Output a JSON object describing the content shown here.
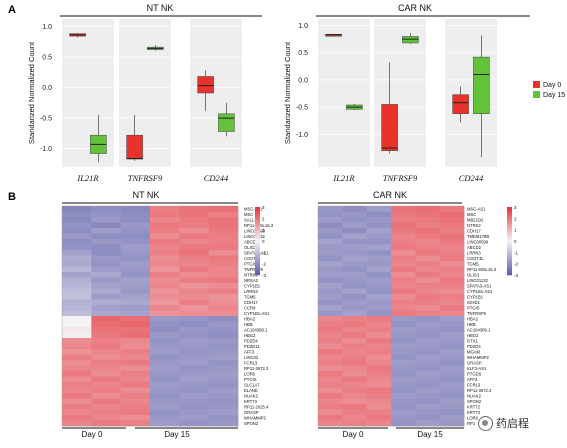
{
  "panel_a": {
    "letter": "A",
    "y_axis_label": "Standarized Normalized Count",
    "y_ticks": [
      "1.0",
      "0.5",
      "0.0",
      "-0.5",
      "-1.0"
    ],
    "legend": [
      {
        "label": "Day 0",
        "color": "#e8322c"
      },
      {
        "label": "Day 15",
        "color": "#62c23a"
      }
    ]
  },
  "panel_b": {
    "letter": "B",
    "colorbar_ticks": [
      "3",
      "2",
      "1",
      "0",
      "-1",
      "-2",
      "-3"
    ],
    "x_labels": [
      "Day 0",
      "Day 15"
    ]
  },
  "colors": {
    "day0_box": "#e8322c",
    "day15_box": "#62c23a",
    "panel_bg": "#eeeeee",
    "heat_high": "#e4333b",
    "heat_mid": "#f4f4f6",
    "heat_low": "#5d5ba8"
  },
  "chart_data": [
    {
      "type": "box",
      "title": "NT NK",
      "ylabel": "Standarized Normalized Count",
      "ylim": [
        -1.3,
        1.12
      ],
      "subplots": [
        {
          "gene": "IL21R",
          "boxes": [
            {
              "group": "Day 0",
              "min": 0.82,
              "q1": 0.84,
              "median": 0.86,
              "q3": 0.88,
              "max": 0.89
            },
            {
              "group": "Day 15",
              "min": -1.22,
              "q1": -1.08,
              "median": -0.93,
              "q3": -0.78,
              "max": -0.45
            }
          ]
        },
        {
          "gene": "TNFRSF9",
          "boxes": [
            {
              "group": "Day 0",
              "min": -1.2,
              "q1": -1.17,
              "median": -1.16,
              "q3": -0.78,
              "max": -0.45
            },
            {
              "group": "Day 15",
              "min": 0.6,
              "q1": 0.62,
              "median": 0.64,
              "q3": 0.66,
              "max": 0.69
            }
          ]
        },
        {
          "gene": "CD244",
          "boxes": [
            {
              "group": "Day 0",
              "min": -0.38,
              "q1": -0.09,
              "median": 0.03,
              "q3": 0.18,
              "max": 0.28
            },
            {
              "group": "Day 15",
              "min": -0.8,
              "q1": -0.72,
              "median": -0.5,
              "q3": -0.43,
              "max": -0.25
            }
          ]
        }
      ]
    },
    {
      "type": "box",
      "title": "CAR NK",
      "ylabel": "Standarized Normalized Count",
      "ylim": [
        -1.6,
        1.12
      ],
      "subplots": [
        {
          "gene": "IL21R",
          "boxes": [
            {
              "group": "Day 0",
              "min": 0.81,
              "q1": 0.82,
              "median": 0.83,
              "q3": 0.84,
              "max": 0.85
            },
            {
              "group": "Day 15",
              "min": -0.55,
              "q1": -0.54,
              "median": -0.5,
              "q3": -0.46,
              "max": -0.44
            }
          ]
        },
        {
          "gene": "TNFRSF9",
          "boxes": [
            {
              "group": "Day 0",
              "min": -1.35,
              "q1": -1.3,
              "median": -1.25,
              "q3": -0.45,
              "max": 0.32
            },
            {
              "group": "Day 15",
              "min": 0.66,
              "q1": 0.68,
              "median": 0.75,
              "q3": 0.8,
              "max": 0.86
            }
          ]
        },
        {
          "gene": "CD244",
          "boxes": [
            {
              "group": "Day 0",
              "min": -0.78,
              "q1": -0.62,
              "median": -0.42,
              "q3": -0.27,
              "max": -0.12
            },
            {
              "group": "Day 15",
              "min": -1.42,
              "q1": -0.62,
              "median": 0.1,
              "q3": 0.42,
              "max": 0.82
            }
          ]
        }
      ]
    },
    {
      "type": "heatmap",
      "title": "NT NK",
      "columns": [
        "Day 0",
        "Day 0",
        "Day 0",
        "Day 15",
        "Day 15",
        "Day 15"
      ],
      "groups": [
        "Day 0",
        "Day 15"
      ],
      "value_range": [
        -3,
        3
      ],
      "rows": [
        "MSC-AS1",
        "MSC",
        "SALL1",
        "RP11-825L16.3",
        "LINC00599",
        "LINC01132",
        "ABCD2",
        "OLIG3",
        "SPATA3-AS1",
        "CGGT4L",
        "PTGIS",
        "TNFRSF9",
        "NTRK2",
        "NRSA2",
        "CYP1B1",
        "LRRN3",
        "TGM5",
        "CDH17",
        "CCR8",
        "CYP1B1-AS1",
        "HBA2",
        "HBB",
        "AC104389.1",
        "HBG2",
        "PDZD4",
        "PDZD11",
        "AFF3",
        "LINC02",
        "FCRL3",
        "RP11-3672.3",
        "LOR6",
        "PTGIS",
        "SLC1A7",
        "ELANE",
        "NUAK2",
        "KRT73",
        "RP11-2025.4",
        "GRASP",
        "WHAMMP2",
        "SPON2"
      ],
      "values": [
        [
          -2.2,
          -2.0,
          -2.1,
          1.8,
          2.0,
          2.1
        ],
        [
          -2.0,
          -1.9,
          -2.0,
          1.9,
          2.0,
          1.8
        ],
        [
          -2.1,
          -1.8,
          -2.0,
          1.7,
          1.9,
          2.0
        ],
        [
          -1.9,
          -2.1,
          -1.8,
          1.9,
          1.8,
          2.0
        ],
        [
          -2.0,
          -1.7,
          -1.9,
          1.8,
          1.6,
          1.9
        ],
        [
          -1.8,
          -2.0,
          -2.0,
          1.6,
          1.9,
          1.8
        ],
        [
          -2.0,
          -1.8,
          -1.9,
          1.9,
          1.7,
          1.8
        ],
        [
          -1.9,
          -2.0,
          -1.7,
          1.7,
          1.9,
          1.9
        ],
        [
          -1.6,
          -2.0,
          -1.8,
          1.8,
          2.0,
          1.6
        ],
        [
          -1.4,
          -1.8,
          -1.9,
          1.6,
          1.8,
          1.9
        ],
        [
          -1.5,
          -1.9,
          -1.7,
          1.7,
          1.7,
          1.8
        ],
        [
          -1.2,
          -1.7,
          -1.8,
          1.5,
          1.9,
          1.7
        ],
        [
          -1.6,
          -1.5,
          -1.9,
          1.8,
          1.6,
          1.7
        ],
        [
          -1.3,
          -1.8,
          -1.6,
          1.6,
          1.8,
          1.9
        ],
        [
          -1.2,
          -1.6,
          -1.7,
          1.7,
          1.5,
          1.6
        ],
        [
          -1.1,
          -1.5,
          -1.8,
          1.5,
          1.7,
          1.8
        ],
        [
          -1.0,
          -1.7,
          -1.6,
          1.6,
          1.6,
          1.5
        ],
        [
          -1.3,
          -1.4,
          -1.5,
          1.4,
          1.8,
          1.6
        ],
        [
          -1.2,
          -1.6,
          -1.7,
          1.7,
          1.5,
          1.7
        ],
        [
          -1.1,
          -1.5,
          -1.6,
          1.5,
          1.6,
          1.6
        ],
        [
          0.0,
          2.2,
          2.1,
          -1.8,
          -1.9,
          -2.0
        ],
        [
          0.0,
          2.1,
          2.2,
          -1.9,
          -2.0,
          -1.8
        ],
        [
          0.2,
          2.0,
          2.0,
          -2.0,
          -1.8,
          -1.9
        ],
        [
          0.1,
          1.9,
          2.1,
          -1.8,
          -1.9,
          -2.0
        ],
        [
          1.6,
          1.8,
          1.7,
          -1.9,
          -1.7,
          -1.8
        ],
        [
          1.7,
          1.9,
          1.6,
          -1.8,
          -1.8,
          -1.9
        ],
        [
          1.5,
          1.7,
          1.8,
          -1.7,
          -1.9,
          -1.8
        ],
        [
          1.8,
          1.6,
          1.7,
          -1.9,
          -1.8,
          -1.7
        ],
        [
          1.6,
          1.8,
          1.9,
          -1.8,
          -1.7,
          -1.9
        ],
        [
          1.7,
          1.7,
          1.6,
          -1.7,
          -1.9,
          -1.8
        ],
        [
          1.9,
          1.6,
          1.8,
          -1.8,
          -1.8,
          -1.7
        ],
        [
          1.6,
          1.9,
          1.7,
          -1.9,
          -1.7,
          -1.8
        ],
        [
          1.8,
          1.7,
          1.9,
          -1.7,
          -1.8,
          -1.9
        ],
        [
          1.7,
          1.8,
          1.6,
          -1.8,
          -1.9,
          -1.7
        ],
        [
          1.9,
          1.6,
          1.8,
          -1.9,
          -1.7,
          -1.8
        ],
        [
          1.6,
          1.9,
          1.7,
          -1.8,
          -1.8,
          -1.9
        ],
        [
          1.8,
          1.7,
          1.8,
          -1.7,
          -1.9,
          -1.8
        ],
        [
          1.7,
          1.8,
          1.9,
          -1.9,
          -1.8,
          -1.7
        ],
        [
          1.9,
          1.7,
          1.6,
          -1.8,
          -1.7,
          -1.9
        ],
        [
          1.7,
          1.9,
          1.8,
          -1.7,
          -1.9,
          -1.8
        ]
      ]
    },
    {
      "type": "heatmap",
      "title": "CAR NK",
      "columns": [
        "Day 0",
        "Day 0",
        "Day 0",
        "Day 15",
        "Day 15",
        "Day 15"
      ],
      "groups": [
        "Day 0",
        "Day 15"
      ],
      "value_range": [
        -3,
        3
      ],
      "rows": [
        "MSC-AS1",
        "MSC",
        "MB21D2",
        "NTRK2",
        "CDH17",
        "TMEM178B",
        "LINC00599",
        "ABCD2",
        "LRRN3",
        "CGGT4L",
        "TGM5",
        "RP11-825L16.3",
        "OLIG3",
        "LINC01132",
        "SPATA3-AS1",
        "CYP1B1-AS1",
        "CYP1B1",
        "IGHD1",
        "PTGIS",
        "TNFRSF9",
        "HBA2",
        "HBB",
        "AC104389.1",
        "HBG2",
        "DTX1",
        "PDZD4",
        "MGAM",
        "WHAMMP2",
        "GRASP",
        "KLF3-AS1",
        "PTGDS",
        "AFF3",
        "FCRL3",
        "RP11-3672.3",
        "NUAK2",
        "SPON2",
        "KRT72",
        "KRT73",
        "LOR6",
        "RP1"
      ],
      "values": [
        [
          -1.8,
          -2.0,
          -1.7,
          2.0,
          2.1,
          1.9
        ],
        [
          -1.9,
          -1.8,
          -2.0,
          1.9,
          2.0,
          2.1
        ],
        [
          -1.7,
          -1.9,
          -1.8,
          1.8,
          1.9,
          2.0
        ],
        [
          -2.0,
          -1.7,
          -1.9,
          2.0,
          1.8,
          1.9
        ],
        [
          -1.8,
          -2.0,
          -1.6,
          1.9,
          2.0,
          1.8
        ],
        [
          -1.9,
          -1.6,
          -1.8,
          1.7,
          1.9,
          2.0
        ],
        [
          -1.6,
          -1.9,
          -1.9,
          1.8,
          1.7,
          1.9
        ],
        [
          -1.8,
          -1.7,
          -1.6,
          1.9,
          1.8,
          1.7
        ],
        [
          -1.7,
          -1.8,
          -1.9,
          1.6,
          1.9,
          1.8
        ],
        [
          -1.9,
          -1.6,
          -1.7,
          1.8,
          1.6,
          1.9
        ],
        [
          -1.6,
          -1.8,
          -1.8,
          1.7,
          1.8,
          1.6
        ],
        [
          -1.8,
          -1.9,
          -1.6,
          1.9,
          1.7,
          1.8
        ],
        [
          -1.7,
          -1.7,
          -1.9,
          1.6,
          1.9,
          1.7
        ],
        [
          -1.9,
          -1.8,
          -1.7,
          1.8,
          1.6,
          1.9
        ],
        [
          -1.6,
          -1.9,
          -1.8,
          1.7,
          1.8,
          1.8
        ],
        [
          -1.8,
          -1.6,
          -1.9,
          1.9,
          1.7,
          1.6
        ],
        [
          -1.7,
          -1.9,
          -1.6,
          1.6,
          1.9,
          1.8
        ],
        [
          -1.9,
          -1.7,
          -1.8,
          1.8,
          1.8,
          1.7
        ],
        [
          -1.6,
          -1.8,
          -1.7,
          1.7,
          1.6,
          1.9
        ],
        [
          -1.8,
          -1.6,
          -1.9,
          1.9,
          1.8,
          1.7
        ],
        [
          1.7,
          1.8,
          1.9,
          -1.8,
          -1.9,
          -1.7
        ],
        [
          1.8,
          1.9,
          1.7,
          -1.9,
          -1.7,
          -1.8
        ],
        [
          1.9,
          1.7,
          1.8,
          -1.7,
          -1.8,
          -1.9
        ],
        [
          1.7,
          1.9,
          1.6,
          -1.8,
          -1.9,
          -1.7
        ],
        [
          1.8,
          1.6,
          1.9,
          -1.9,
          -1.7,
          -1.8
        ],
        [
          1.6,
          1.8,
          1.7,
          -1.7,
          -1.8,
          -1.9
        ],
        [
          1.9,
          1.7,
          1.8,
          -1.8,
          -1.9,
          -1.7
        ],
        [
          1.7,
          1.8,
          1.6,
          -1.9,
          -1.7,
          -1.8
        ],
        [
          1.8,
          1.9,
          1.7,
          -1.7,
          -1.8,
          -1.9
        ],
        [
          1.6,
          1.7,
          1.9,
          -1.8,
          -1.9,
          -1.7
        ],
        [
          1.9,
          1.6,
          1.8,
          -1.9,
          -1.7,
          -1.8
        ],
        [
          1.7,
          1.9,
          1.7,
          -1.7,
          -1.8,
          -1.9
        ],
        [
          1.8,
          1.7,
          1.6,
          -1.8,
          -1.9,
          -1.7
        ],
        [
          1.6,
          1.8,
          1.9,
          -1.9,
          -1.7,
          -1.8
        ],
        [
          1.9,
          1.7,
          1.8,
          -1.7,
          -1.8,
          -1.9
        ],
        [
          1.7,
          1.6,
          1.7,
          -1.8,
          -1.9,
          -1.7
        ],
        [
          1.8,
          1.9,
          1.6,
          -1.9,
          -1.7,
          -1.8
        ],
        [
          1.6,
          1.8,
          1.8,
          -1.7,
          -1.8,
          -1.9
        ],
        [
          1.9,
          1.7,
          1.9,
          -1.8,
          -1.9,
          -1.7
        ],
        [
          1.7,
          1.8,
          1.7,
          -1.9,
          -1.7,
          -1.8
        ]
      ]
    }
  ],
  "watermark": {
    "text": "药启程",
    "icon": "brand-logo-icon"
  }
}
